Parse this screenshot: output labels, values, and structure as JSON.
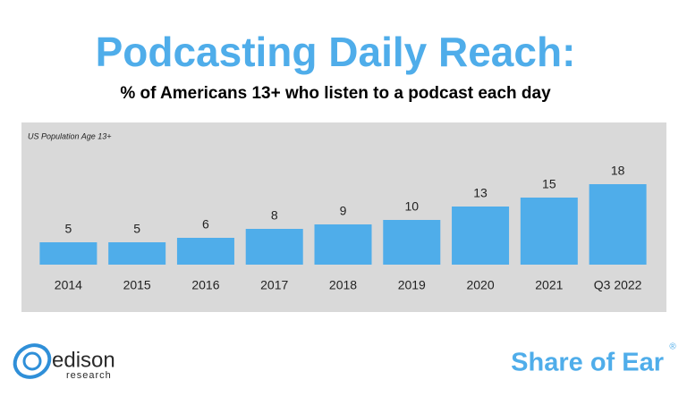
{
  "chart_data": {
    "type": "bar",
    "title": "Podcasting Daily Reach:",
    "subtitle": "% of Americans 13+ who listen to a podcast each day",
    "annotation": "US Population Age 13+",
    "categories": [
      "2014",
      "2015",
      "2016",
      "2017",
      "2018",
      "2019",
      "2020",
      "2021",
      "Q3 2022"
    ],
    "values": [
      5,
      5,
      6,
      8,
      9,
      10,
      13,
      15,
      18
    ],
    "color": "#4fadea"
  },
  "footer": {
    "logo_name": "edison",
    "logo_sub": "research",
    "brand": "Share of Ear",
    "brand_mark": "®"
  }
}
